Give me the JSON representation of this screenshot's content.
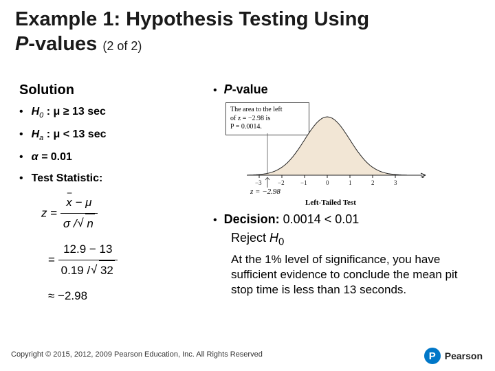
{
  "title": {
    "line1": "Example 1: Hypothesis Testing Using",
    "italic_part": "P",
    "line2_rest": "-values",
    "sub": "(2 of 2)"
  },
  "left": {
    "solution": "Solution",
    "h0_label": "H",
    "h0_sub": "0",
    "h0_stmt": ": μ ≥ 13 sec",
    "ha_label": "H",
    "ha_sub": "a",
    "ha_stmt": ": μ < 13 sec",
    "alpha_label": "α =",
    "alpha_val": "0.01",
    "ts_label": "Test Statistic:",
    "formula": {
      "z": "z",
      "eq": "=",
      "num1_a": "x",
      "num1_m": "− μ",
      "den1_a": "σ",
      "den1_b": "n",
      "num2": "12.9 − 13",
      "den2_a": "0.19",
      "den2_b": "32",
      "approx": "≈ −2.98"
    }
  },
  "right": {
    "pval_label": "P",
    "pval_rest": "-value",
    "callout_l1": "The area to the left",
    "callout_l2": "of z = −2.98 is",
    "callout_l3": "P = 0.0014.",
    "axis": {
      "m3": "−3",
      "m2": "−2",
      "m1": "−1",
      "z0": "0",
      "p1": "1",
      "p2": "2",
      "p3": "3",
      "zvar": "z"
    },
    "z_marker": "z = −2.98",
    "lt_test": "Left-Tailed Test",
    "decision_label": "Decision:",
    "decision_val": "0.0014 < 0.01",
    "reject_a": "Reject ",
    "reject_b": "H",
    "reject_sub": "0",
    "explain": "At the 1% level of significance, you have sufficient evidence to conclude the mean pit stop time is less than 13 seconds."
  },
  "footer": {
    "copyright": "Copyright © 2015, 2012, 2009 Pearson Education, Inc. All Rights Reserved",
    "logo_letter": "P",
    "logo_text": "Pearson"
  },
  "chart": {
    "curve_fill": "#f2e6d5",
    "curve_stroke": "#222222",
    "tail_fill": "#4a4a4a",
    "axis_color": "#222222",
    "leader_color": "#555555"
  }
}
